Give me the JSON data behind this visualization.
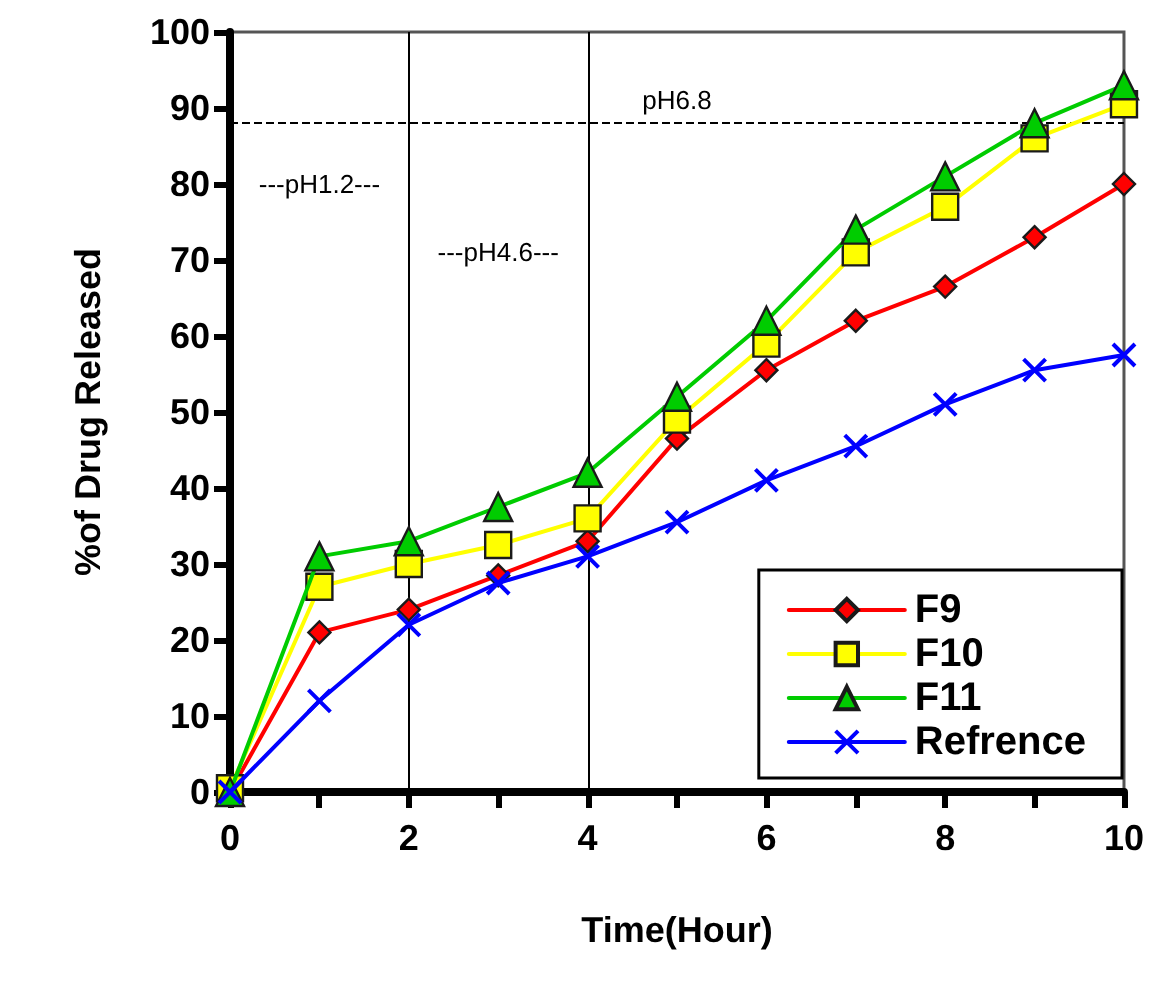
{
  "chart_data": {
    "type": "line",
    "xlabel": "Time(Hour)",
    "ylabel": "%of Drug Released",
    "x": [
      0,
      1,
      2,
      3,
      4,
      5,
      6,
      7,
      8,
      9,
      10
    ],
    "xlim": [
      0,
      10
    ],
    "xticks": [
      0,
      {
        "value": 1,
        "label": null
      },
      2,
      {
        "value": 3,
        "label": null
      },
      4,
      {
        "value": 5,
        "label": null
      },
      6,
      {
        "value": 7,
        "label": null
      },
      8,
      {
        "value": 9,
        "label": null
      },
      10
    ],
    "ylim": [
      0,
      100
    ],
    "yticks": [
      0,
      10,
      20,
      30,
      40,
      50,
      60,
      70,
      80,
      90,
      100
    ],
    "grid": false,
    "legend": "bottom right",
    "line_style": "solid",
    "series": [
      {
        "name": "F9",
        "color": "#ff0000",
        "marker": "diamond",
        "values": [
          0,
          21,
          24,
          28.5,
          33,
          46.5,
          55.5,
          62,
          66.5,
          73,
          80
        ]
      },
      {
        "name": "F10",
        "color": "#ffff00",
        "marker": "square",
        "values": [
          0.5,
          27,
          30,
          32.5,
          36,
          49,
          59,
          71,
          77,
          86,
          90.5
        ]
      },
      {
        "name": "F11",
        "color": "#00cc00",
        "marker": "triangle",
        "values": [
          0,
          31,
          33,
          37.5,
          42,
          52,
          62,
          74,
          81,
          88,
          93
        ]
      },
      {
        "name": "Refrence",
        "color": "#0000ff",
        "marker": "cross",
        "values": [
          0,
          12,
          22,
          27.5,
          31,
          35.5,
          41,
          45.5,
          51,
          55.5,
          57.5
        ]
      }
    ],
    "ref_lines": [
      {
        "axis": "x",
        "value": 2,
        "label": null,
        "color": "#000000",
        "line_style": "solid"
      },
      {
        "axis": "x",
        "value": 4,
        "label": null,
        "color": "#000000",
        "line_style": "solid"
      },
      {
        "axis": "y",
        "value": 88,
        "label": "pH6.8",
        "color": "#000000",
        "line_style": "dashed"
      }
    ],
    "annotations": [
      "---pH1.2---",
      "---pH4.6---"
    ]
  }
}
